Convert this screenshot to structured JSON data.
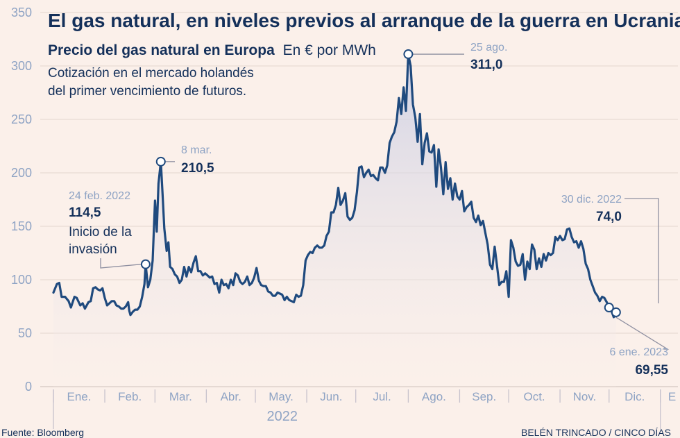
{
  "chart_data": {
    "type": "area",
    "title": "El gas natural, en niveles previos al arranque de la guerra en Ucrania",
    "subtitle_bold": "Precio del gas natural en Europa",
    "subtitle_unit": "En € por MWh",
    "note_lines": [
      "Cotización en el mercado holandés",
      "del primer vencimiento de futuros."
    ],
    "ylim": [
      0,
      350
    ],
    "yticks": [
      0,
      50,
      100,
      150,
      200,
      250,
      300,
      350
    ],
    "x_range": [
      0,
      53.5
    ],
    "month_ticks": [
      0,
      4.4,
      8.7,
      13.1,
      17.3,
      21.7,
      25.9,
      30.4,
      34.8,
      39.0,
      43.4,
      47.6,
      52.0
    ],
    "month_labels": [
      {
        "label": "Ene.",
        "x": 2.2
      },
      {
        "label": "Feb.",
        "x": 6.55
      },
      {
        "label": "Mar.",
        "x": 10.9
      },
      {
        "label": "Abr.",
        "x": 15.2
      },
      {
        "label": "May.",
        "x": 19.5
      },
      {
        "label": "Jun.",
        "x": 23.8
      },
      {
        "label": "Jul.",
        "x": 28.15
      },
      {
        "label": "Ago.",
        "x": 32.6
      },
      {
        "label": "Sep.",
        "x": 36.9
      },
      {
        "label": "Oct.",
        "x": 41.2
      },
      {
        "label": "Nov.",
        "x": 45.5
      },
      {
        "label": "Dic.",
        "x": 49.8
      },
      {
        "label": "E",
        "x": 53.0
      }
    ],
    "year_label": "2022",
    "series": [
      {
        "color": "#1f4a7e",
        "points": [
          [
            0.0,
            88
          ],
          [
            0.3,
            96
          ],
          [
            0.5,
            97
          ],
          [
            0.7,
            84
          ],
          [
            1.0,
            84
          ],
          [
            1.3,
            80
          ],
          [
            1.5,
            74
          ],
          [
            1.8,
            84
          ],
          [
            2.0,
            83
          ],
          [
            2.3,
            76
          ],
          [
            2.5,
            78
          ],
          [
            2.7,
            73
          ],
          [
            3.0,
            79
          ],
          [
            3.2,
            80
          ],
          [
            3.4,
            92
          ],
          [
            3.6,
            93
          ],
          [
            3.8,
            91
          ],
          [
            4.0,
            90
          ],
          [
            4.2,
            92
          ],
          [
            4.4,
            83
          ],
          [
            4.6,
            76
          ],
          [
            4.8,
            78
          ],
          [
            5.0,
            80
          ],
          [
            5.2,
            80
          ],
          [
            5.4,
            76
          ],
          [
            5.6,
            75
          ],
          [
            5.8,
            73
          ],
          [
            6.0,
            73
          ],
          [
            6.2,
            75
          ],
          [
            6.4,
            79
          ],
          [
            6.5,
            71
          ],
          [
            6.6,
            67
          ],
          [
            6.8,
            70
          ],
          [
            7.0,
            72
          ],
          [
            7.2,
            72
          ],
          [
            7.4,
            75
          ],
          [
            7.6,
            84
          ],
          [
            7.8,
            96
          ],
          [
            7.9,
            114.5
          ],
          [
            8.1,
            93
          ],
          [
            8.3,
            100
          ],
          [
            8.5,
            118
          ],
          [
            8.7,
            174
          ],
          [
            8.85,
            145
          ],
          [
            9.0,
            190
          ],
          [
            9.2,
            210.5
          ],
          [
            9.35,
            180
          ],
          [
            9.5,
            148
          ],
          [
            9.7,
            127
          ],
          [
            9.85,
            135
          ],
          [
            10.0,
            112
          ],
          [
            10.2,
            110
          ],
          [
            10.4,
            105
          ],
          [
            10.6,
            103
          ],
          [
            10.8,
            97
          ],
          [
            11.0,
            100
          ],
          [
            11.2,
            112
          ],
          [
            11.4,
            103
          ],
          [
            11.6,
            112
          ],
          [
            11.8,
            107
          ],
          [
            12.0,
            116
          ],
          [
            12.2,
            122
          ],
          [
            12.4,
            108
          ],
          [
            12.6,
            108
          ],
          [
            12.8,
            104
          ],
          [
            13.0,
            106
          ],
          [
            13.2,
            104
          ],
          [
            13.4,
            102
          ],
          [
            13.6,
            103
          ],
          [
            13.8,
            96
          ],
          [
            14.0,
            97
          ],
          [
            14.2,
            88
          ],
          [
            14.4,
            100
          ],
          [
            14.6,
            95
          ],
          [
            14.8,
            96
          ],
          [
            15.0,
            92
          ],
          [
            15.2,
            100
          ],
          [
            15.4,
            95
          ],
          [
            15.6,
            106
          ],
          [
            15.8,
            104
          ],
          [
            16.0,
            98
          ],
          [
            16.2,
            96
          ],
          [
            16.4,
            98
          ],
          [
            16.6,
            103
          ],
          [
            16.8,
            95
          ],
          [
            17.0,
            97
          ],
          [
            17.2,
            102
          ],
          [
            17.4,
            111
          ],
          [
            17.6,
            99
          ],
          [
            17.8,
            95
          ],
          [
            18.0,
            94
          ],
          [
            18.2,
            94
          ],
          [
            18.4,
            89
          ],
          [
            18.6,
            88
          ],
          [
            18.8,
            85
          ],
          [
            19.0,
            85
          ],
          [
            19.2,
            88
          ],
          [
            19.4,
            87
          ],
          [
            19.6,
            86
          ],
          [
            19.8,
            81
          ],
          [
            20.0,
            84
          ],
          [
            20.2,
            81
          ],
          [
            20.4,
            80
          ],
          [
            20.6,
            79
          ],
          [
            20.8,
            86
          ],
          [
            21.0,
            84
          ],
          [
            21.2,
            85
          ],
          [
            21.4,
            95
          ],
          [
            21.6,
            118
          ],
          [
            21.8,
            123
          ],
          [
            22.0,
            126
          ],
          [
            22.2,
            125
          ],
          [
            22.4,
            130
          ],
          [
            22.6,
            132
          ],
          [
            22.8,
            130
          ],
          [
            23.0,
            130
          ],
          [
            23.2,
            132
          ],
          [
            23.4,
            141
          ],
          [
            23.6,
            145
          ],
          [
            23.8,
            163
          ],
          [
            24.0,
            163
          ],
          [
            24.2,
            170
          ],
          [
            24.4,
            186
          ],
          [
            24.6,
            170
          ],
          [
            24.8,
            174
          ],
          [
            25.0,
            181
          ],
          [
            25.2,
            159
          ],
          [
            25.4,
            156
          ],
          [
            25.6,
            158
          ],
          [
            25.8,
            165
          ],
          [
            26.0,
            182
          ],
          [
            26.2,
            205
          ],
          [
            26.4,
            206
          ],
          [
            26.6,
            196
          ],
          [
            26.8,
            200
          ],
          [
            27.0,
            203
          ],
          [
            27.2,
            197
          ],
          [
            27.4,
            198
          ],
          [
            27.6,
            195
          ],
          [
            27.8,
            193
          ],
          [
            28.0,
            205
          ],
          [
            28.2,
            205
          ],
          [
            28.4,
            200
          ],
          [
            28.6,
            207
          ],
          [
            28.8,
            228
          ],
          [
            29.0,
            234
          ],
          [
            29.2,
            238
          ],
          [
            29.4,
            248
          ],
          [
            29.6,
            270
          ],
          [
            29.8,
            255
          ],
          [
            30.0,
            280
          ],
          [
            30.2,
            258
          ],
          [
            30.4,
            311
          ],
          [
            30.6,
            300
          ],
          [
            30.8,
            264
          ],
          [
            31.0,
            252
          ],
          [
            31.2,
            229
          ],
          [
            31.4,
            255
          ],
          [
            31.6,
            208
          ],
          [
            31.8,
            228
          ],
          [
            32.0,
            237
          ],
          [
            32.2,
            220
          ],
          [
            32.4,
            219
          ],
          [
            32.6,
            226
          ],
          [
            32.8,
            187
          ],
          [
            33.0,
            222
          ],
          [
            33.2,
            205
          ],
          [
            33.4,
            180
          ],
          [
            33.6,
            210
          ],
          [
            33.8,
            185
          ],
          [
            34.0,
            195
          ],
          [
            34.2,
            175
          ],
          [
            34.4,
            190
          ],
          [
            34.6,
            178
          ],
          [
            34.8,
            175
          ],
          [
            35.0,
            183
          ],
          [
            35.2,
            164
          ],
          [
            35.4,
            168
          ],
          [
            35.6,
            170
          ],
          [
            35.8,
            173
          ],
          [
            36.0,
            158
          ],
          [
            36.2,
            154
          ],
          [
            36.4,
            160
          ],
          [
            36.6,
            151
          ],
          [
            36.8,
            155
          ],
          [
            37.0,
            144
          ],
          [
            37.2,
            133
          ],
          [
            37.4,
            114
          ],
          [
            37.6,
            110
          ],
          [
            37.8,
            131
          ],
          [
            38.0,
            113
          ],
          [
            38.2,
            95
          ],
          [
            38.4,
            98
          ],
          [
            38.6,
            98
          ],
          [
            38.8,
            108
          ],
          [
            39.0,
            84
          ],
          [
            39.2,
            137
          ],
          [
            39.4,
            130
          ],
          [
            39.6,
            117
          ],
          [
            39.8,
            113
          ],
          [
            40.0,
            114
          ],
          [
            40.2,
            124
          ],
          [
            40.4,
            100
          ],
          [
            40.6,
            117
          ],
          [
            40.8,
            110
          ],
          [
            41.0,
            133
          ],
          [
            41.2,
            128
          ],
          [
            41.4,
            110
          ],
          [
            41.6,
            120
          ],
          [
            41.8,
            112
          ],
          [
            42.0,
            124
          ],
          [
            42.2,
            118
          ],
          [
            42.4,
            125
          ],
          [
            42.6,
            123
          ],
          [
            42.8,
            125
          ],
          [
            43.0,
            140
          ],
          [
            43.2,
            137
          ],
          [
            43.4,
            141
          ],
          [
            43.6,
            137
          ],
          [
            43.8,
            138
          ],
          [
            44.0,
            147
          ],
          [
            44.2,
            148
          ],
          [
            44.4,
            140
          ],
          [
            44.6,
            135
          ],
          [
            44.8,
            136
          ],
          [
            45.0,
            130
          ],
          [
            45.2,
            136
          ],
          [
            45.4,
            129
          ],
          [
            45.6,
            115
          ],
          [
            45.8,
            110
          ],
          [
            46.0,
            100
          ],
          [
            46.2,
            94
          ],
          [
            46.4,
            88
          ],
          [
            46.6,
            85
          ],
          [
            46.8,
            80
          ],
          [
            47.0,
            84
          ],
          [
            47.2,
            83
          ],
          [
            47.4,
            79
          ],
          [
            47.6,
            74
          ],
          [
            47.8,
            71
          ],
          [
            48.0,
            65
          ],
          [
            48.2,
            69.55
          ]
        ]
      }
    ],
    "annotations": [
      {
        "date": "24 feb. 2022",
        "value_label": "114,5",
        "text_lines": [
          "Inicio de la",
          "invasión"
        ],
        "x": 7.9,
        "y": 114.5
      },
      {
        "date": "8 mar.",
        "value_label": "210,5",
        "text_lines": [],
        "x": 9.2,
        "y": 210.5
      },
      {
        "date": "25 ago.",
        "value_label": "311,0",
        "text_lines": [],
        "x": 30.4,
        "y": 311
      },
      {
        "date": "30 dic. 2022",
        "value_label": "74,0",
        "text_lines": [],
        "x": 47.6,
        "y": 74
      },
      {
        "date": "6 ene. 2023",
        "value_label": "69,55",
        "text_lines": [],
        "x": 48.2,
        "y": 69.55
      }
    ],
    "grid": true,
    "line_color": "#1f4a7e",
    "grid_color": "#e3d6cf",
    "area_color": "#d9dcec"
  },
  "footer": {
    "source": "Fuente: Bloomberg",
    "credit": "BELÉN TRINCADO / CINCO DÍAS"
  }
}
